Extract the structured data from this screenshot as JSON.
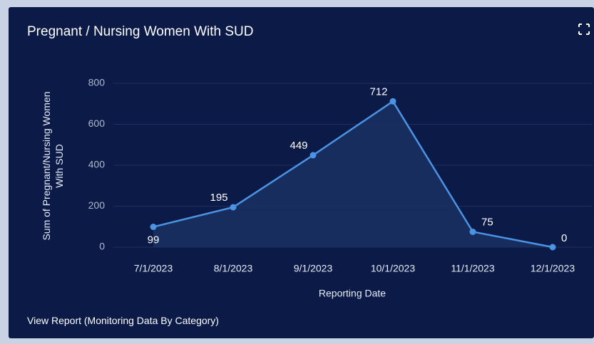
{
  "chart_data": {
    "type": "line",
    "title": "Pregnant / Nursing Women With SUD",
    "x_label": "Reporting Date",
    "y_label": "Sum of Pregnant/Nursing Women With SUD",
    "categories": [
      "7/1/2023",
      "8/1/2023",
      "9/1/2023",
      "10/1/2023",
      "11/1/2023",
      "12/1/2023"
    ],
    "series": [
      {
        "name": "Sum of Pregnant/Nursing Women With SUD",
        "color": "#4b93e3",
        "values": [
          99,
          195,
          449,
          712,
          75,
          0
        ]
      }
    ],
    "ylim": [
      0,
      800
    ],
    "yticks": [
      0,
      200,
      400,
      600,
      800
    ],
    "grid": true,
    "area": true
  },
  "footer": {
    "link": "View Report (Monitoring Data By Category)"
  }
}
